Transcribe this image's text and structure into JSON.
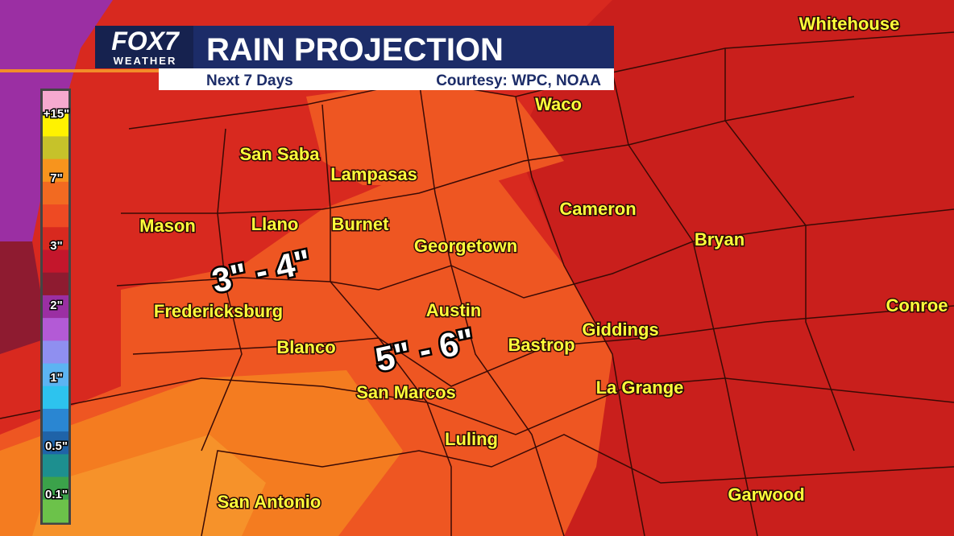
{
  "header": {
    "logo": "FOX7",
    "logo_sub": "WEATHER",
    "title": "RAIN PROJECTION",
    "subtitle": "Next 7 Days",
    "credit": "Courtesy: WPC, NOAA"
  },
  "legend": {
    "labels": [
      "+15\"",
      "7\"",
      "3\"",
      "2\"",
      "1\"",
      "0.5\"",
      "0.1\""
    ]
  },
  "cities": [
    "Whitehouse",
    "Waco",
    "San Saba",
    "Lampasas",
    "Cameron",
    "Mason",
    "Llano",
    "Burnet",
    "Georgetown",
    "Bryan",
    "Fredericksburg",
    "Austin",
    "Conroe",
    "Giddings",
    "Blanco",
    "Bastrop",
    "San Marcos",
    "La Grange",
    "Luling",
    "San Antonio",
    "Garwood"
  ],
  "ranges": [
    "3\" - 4\"",
    "5\" - 6\""
  ]
}
